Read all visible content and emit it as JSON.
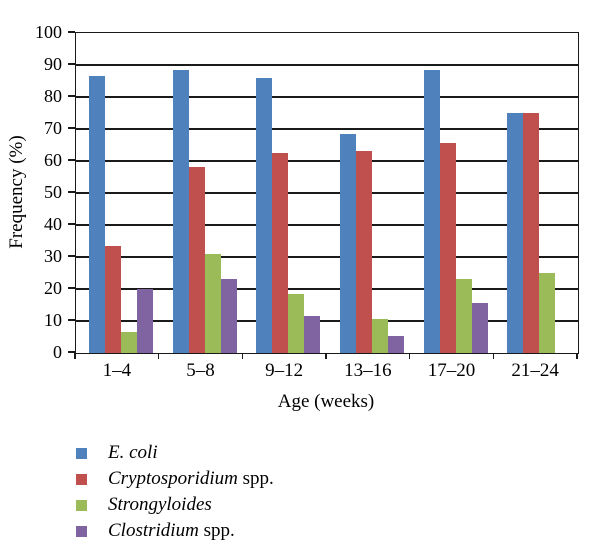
{
  "chart_data": {
    "type": "bar",
    "title": "",
    "xlabel": "Age (weeks)",
    "ylabel": "Frequency (%)",
    "ylim": [
      0,
      100
    ],
    "ytick_step": 10,
    "yticks": [
      0,
      10,
      20,
      30,
      40,
      50,
      60,
      70,
      80,
      90,
      100
    ],
    "grid": true,
    "legend_position": "bottom-left",
    "categories": [
      "1–4",
      "5–8",
      "9–12",
      "13–16",
      "17–20",
      "21–24"
    ],
    "series": [
      {
        "name": "E. coli",
        "color": "#4f81bd",
        "values": [
          86.7,
          88.5,
          86.0,
          68.5,
          88.5,
          75.0
        ]
      },
      {
        "name": "Cryptosporidium spp.",
        "color": "#c0504d",
        "values": [
          33.3,
          58.0,
          62.5,
          63.0,
          65.5,
          75.0
        ]
      },
      {
        "name": "Strongyloides",
        "color": "#9bbb59",
        "values": [
          6.7,
          31.0,
          18.5,
          10.5,
          23.0,
          25.0
        ]
      },
      {
        "name": "Clostridium spp.",
        "color": "#8064a2",
        "values": [
          20.0,
          23.0,
          11.5,
          5.3,
          15.5,
          0.0
        ]
      }
    ]
  },
  "axes": {
    "xlabel": "Age (weeks)",
    "ylabel": "Frequency (%)"
  },
  "legend": {
    "items": [
      {
        "italic": "E. coli",
        "rest": "",
        "color": "#4f81bd"
      },
      {
        "italic": "Cryptosporidium",
        "rest": " spp.",
        "color": "#c0504d"
      },
      {
        "italic": "Strongyloides",
        "rest": "",
        "color": "#9bbb59"
      },
      {
        "italic": "Clostridium",
        "rest": " spp.",
        "color": "#8064a2"
      }
    ]
  },
  "colors": {
    "axis": "#1a1a1a",
    "background": "#ffffff"
  }
}
